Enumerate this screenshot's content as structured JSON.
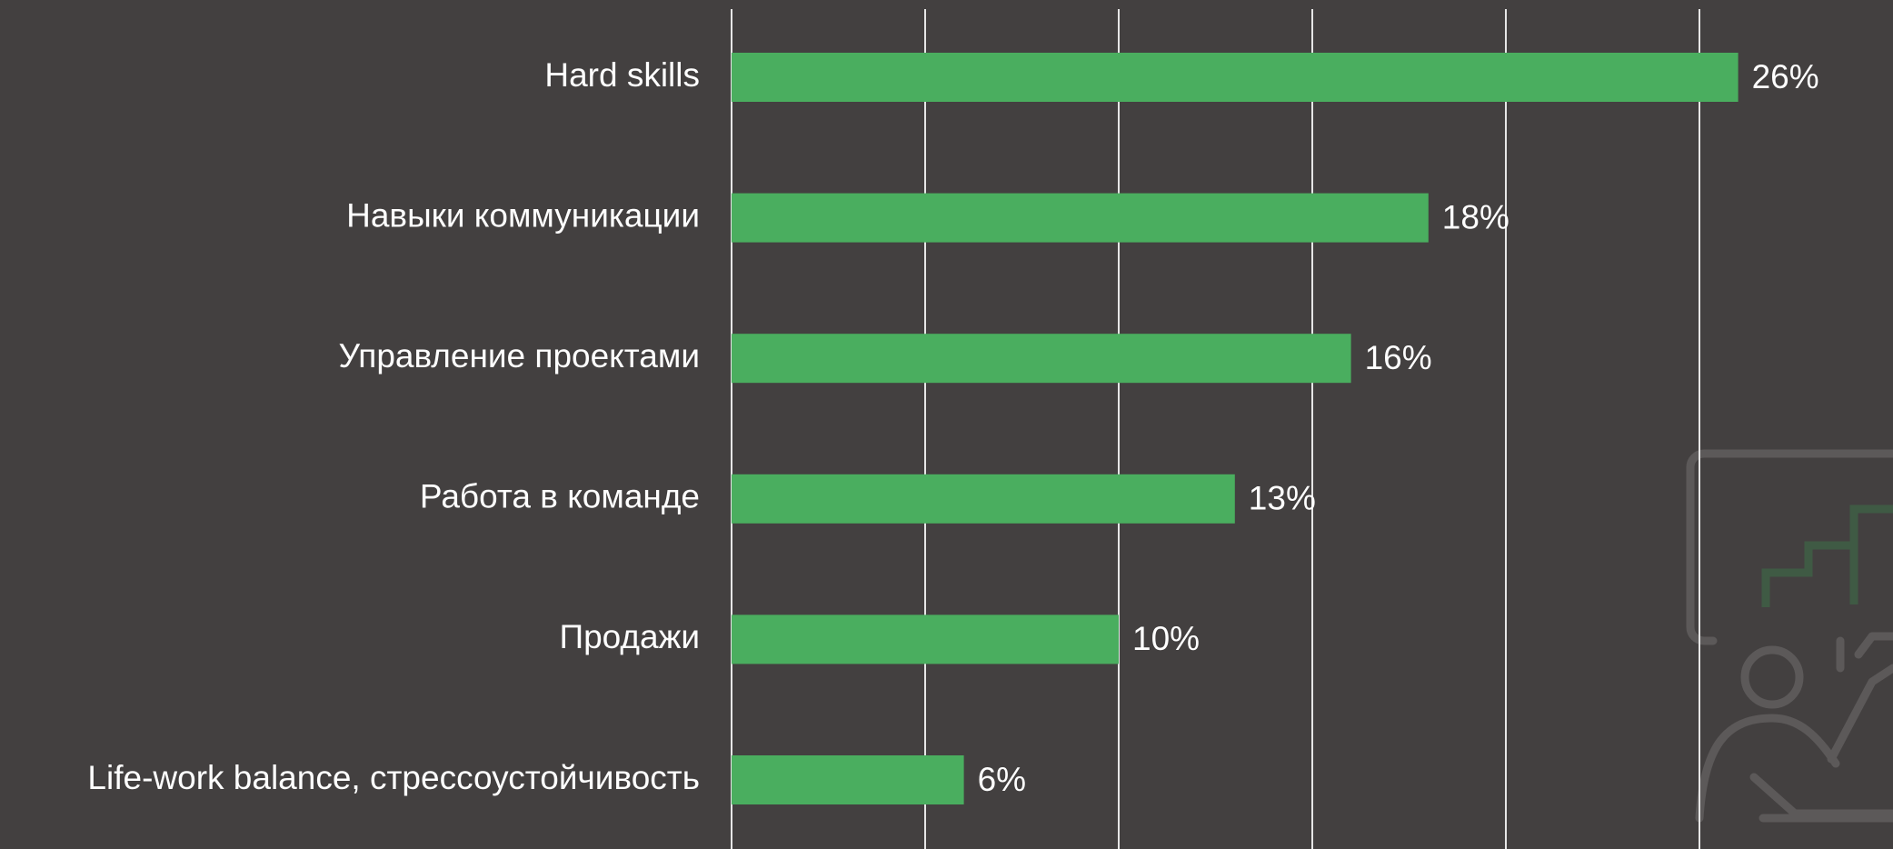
{
  "chart_data": {
    "type": "bar",
    "orientation": "horizontal",
    "categories": [
      "Hard skills",
      "Навыки коммуникации",
      "Управление проектами",
      "Работа в команде",
      "Продажи",
      "Life-work balance, стрессоустойчивость"
    ],
    "values": [
      26,
      18,
      16,
      13,
      10,
      6
    ],
    "value_labels": [
      "26%",
      "18%",
      "16%",
      "13%",
      "10%",
      "6%"
    ],
    "color": "#4aae5f",
    "xlim": [
      0,
      30
    ],
    "xticks": [
      0,
      5,
      10,
      15,
      20,
      25
    ],
    "grid": true
  }
}
